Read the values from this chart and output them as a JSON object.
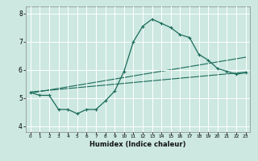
{
  "title": "",
  "xlabel": "Humidex (Indice chaleur)",
  "background_color": "#cce8e0",
  "grid_color": "#ffffff",
  "line_color": "#1a6b5a",
  "xlim": [
    -0.5,
    23.5
  ],
  "ylim": [
    3.8,
    8.25
  ],
  "xticks": [
    0,
    1,
    2,
    3,
    4,
    5,
    6,
    7,
    8,
    9,
    10,
    11,
    12,
    13,
    14,
    15,
    16,
    17,
    18,
    19,
    20,
    21,
    22,
    23
  ],
  "yticks": [
    4,
    5,
    6,
    7,
    8
  ],
  "line1_x": [
    0,
    1,
    2,
    3,
    4,
    5,
    6,
    7,
    8,
    9,
    10,
    11,
    12,
    13,
    14,
    15,
    16,
    17,
    18,
    19,
    20,
    21,
    22,
    23
  ],
  "line1_y": [
    5.2,
    5.1,
    5.1,
    4.6,
    4.6,
    4.45,
    4.6,
    4.6,
    4.9,
    5.25,
    5.95,
    7.0,
    7.55,
    7.8,
    7.65,
    7.5,
    7.25,
    7.15,
    6.55,
    6.35,
    6.05,
    5.95,
    5.85,
    5.9
  ],
  "line2_x": [
    0,
    23
  ],
  "line2_y": [
    5.18,
    6.45
  ],
  "line3_x": [
    0,
    23
  ],
  "line3_y": [
    5.22,
    5.92
  ],
  "marker": "+"
}
